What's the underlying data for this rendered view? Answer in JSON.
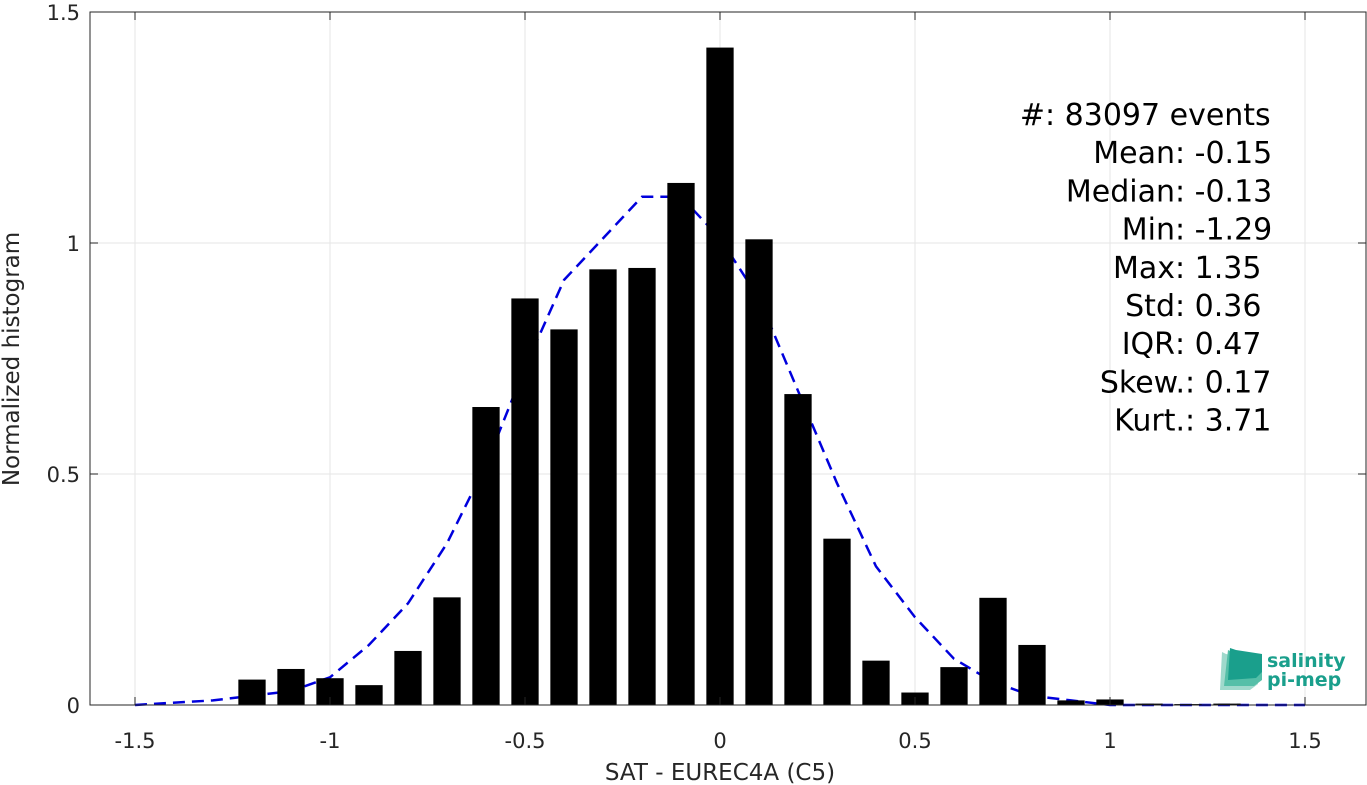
{
  "chart_data": {
    "type": "bar",
    "xlabel": "SAT - EUREC4A (C5)",
    "ylabel": "Normalized histogram",
    "xlim": [
      -1.5,
      1.5
    ],
    "ylim": [
      0,
      1.5
    ],
    "x_ticks": [
      "-1.5",
      "-1",
      "-0.5",
      "0",
      "0.5",
      "1",
      "1.5"
    ],
    "y_ticks": [
      "0",
      "0.5",
      "1",
      "1.5"
    ],
    "grid": true,
    "bar_width": 0.07,
    "bar_color": "#000000",
    "bins": [
      -1.2,
      -1.1,
      -1.0,
      -0.9,
      -0.8,
      -0.7,
      -0.6,
      -0.5,
      -0.4,
      -0.3,
      -0.2,
      -0.1,
      0.0,
      0.1,
      0.2,
      0.3,
      0.4,
      0.5,
      0.6,
      0.7,
      0.8,
      0.9,
      1.0,
      1.1,
      1.2,
      1.3
    ],
    "values": [
      0.055,
      0.078,
      0.058,
      0.043,
      0.117,
      0.233,
      0.645,
      0.88,
      0.813,
      0.943,
      0.946,
      1.13,
      1.423,
      1.008,
      0.673,
      0.36,
      0.096,
      0.027,
      0.082,
      0.232,
      0.13,
      0.01,
      0.012,
      0.003,
      0.002,
      0.003
    ],
    "fit": {
      "style": "dashed",
      "color": "#0000dd",
      "x": [
        -1.5,
        -1.3,
        -1.1,
        -1.0,
        -0.9,
        -0.8,
        -0.7,
        -0.6,
        -0.5,
        -0.4,
        -0.3,
        -0.2,
        -0.1,
        0.0,
        0.1,
        0.2,
        0.3,
        0.4,
        0.5,
        0.6,
        0.7,
        0.8,
        0.9,
        1.0,
        1.1,
        1.3,
        1.5
      ],
      "y": [
        0.0,
        0.01,
        0.03,
        0.06,
        0.13,
        0.22,
        0.35,
        0.52,
        0.73,
        0.92,
        1.01,
        1.1,
        1.1,
        1.01,
        0.88,
        0.68,
        0.48,
        0.3,
        0.19,
        0.1,
        0.05,
        0.02,
        0.01,
        0.0,
        0.0,
        0.0,
        0.0
      ]
    },
    "stats": [
      {
        "label": "#  ",
        "value": ": 83097 events"
      },
      {
        "label": "Mean ",
        "value": ": -0.15"
      },
      {
        "label": "Median ",
        "value": ": -0.13"
      },
      {
        "label": "Min ",
        "value": ": -1.29"
      },
      {
        "label": "Max ",
        "value": ": 1.35"
      },
      {
        "label": "Std ",
        "value": ": 0.36"
      },
      {
        "label": "IQR ",
        "value": ": 0.47"
      },
      {
        "label": "Skew. ",
        "value": ": 0.17"
      },
      {
        "label": "Kurt. ",
        "value": ": 3.71"
      }
    ]
  },
  "logo": {
    "line1": "salinity",
    "line2": "pi-mep",
    "color": "#1a9f8c"
  }
}
